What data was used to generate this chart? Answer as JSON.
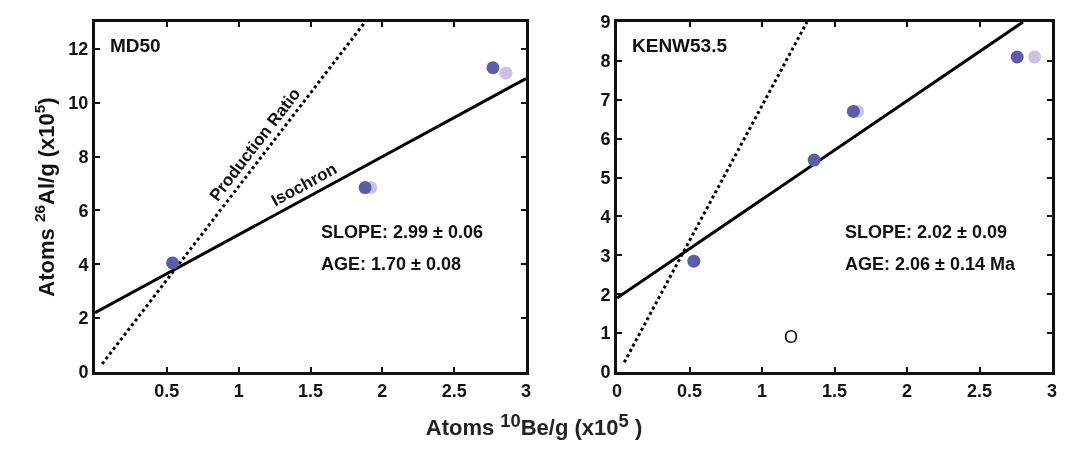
{
  "chart_data": [
    {
      "type": "scatter",
      "title": "MD50",
      "xlabel": "Atoms $^{10}$Be/g (x10$^{5}$ )",
      "ylabel": "Atoms $^{26}$Al/g (x10$^{5}$)",
      "xlim": [
        0,
        3
      ],
      "ylim": [
        0,
        13
      ],
      "xticks": [
        0.5,
        1,
        1.5,
        2,
        2.5,
        3
      ],
      "yticks": [
        0,
        2,
        4,
        6,
        8,
        10,
        12
      ],
      "grid": false,
      "series": [
        {
          "color": "#5c5ca8",
          "marker": "circle",
          "x": [
            0.54,
            1.88,
            2.77
          ],
          "values": [
            4.05,
            6.85,
            11.3
          ]
        },
        {
          "color": "#cbc3e3",
          "marker": "circle",
          "x": [
            1.92,
            2.86
          ],
          "values": [
            6.85,
            11.1
          ]
        },
        {
          "type": "line",
          "name": "Isochron",
          "color": "#000000",
          "marker": "none",
          "line_style": "solid",
          "x": [
            0,
            3
          ],
          "values": [
            2.2,
            10.9
          ]
        },
        {
          "type": "line",
          "name": "Production Ratio",
          "color": "#000000",
          "marker": "none",
          "line_style": "dotted",
          "x": [
            0.05,
            1.88
          ],
          "values": [
            0.3,
            13
          ]
        }
      ],
      "annotations": [
        "SLOPE: 2.99 ± 0.06",
        "AGE: 1.70 ± 0.08"
      ]
    },
    {
      "type": "scatter",
      "title": "KENW53.5",
      "xlim": [
        0,
        3
      ],
      "ylim": [
        0,
        9
      ],
      "xticks": [
        0,
        0.5,
        1,
        1.5,
        2,
        2.5,
        3
      ],
      "yticks": [
        0,
        1,
        2,
        3,
        4,
        5,
        6,
        7,
        8,
        9
      ],
      "grid": false,
      "series": [
        {
          "color": "#5c5ca8",
          "marker": "circle",
          "x": [
            0.53,
            1.36,
            1.63,
            2.76
          ],
          "values": [
            2.85,
            5.45,
            6.7,
            8.1
          ]
        },
        {
          "color": "#cbc3e3",
          "marker": "circle",
          "x": [
            1.66,
            2.88
          ],
          "values": [
            6.7,
            8.1
          ]
        },
        {
          "type": "line",
          "color": "#000000",
          "marker": "none",
          "line_style": "solid",
          "x": [
            0,
            2.8
          ],
          "values": [
            1.9,
            9
          ]
        },
        {
          "type": "line",
          "color": "#000000",
          "marker": "none",
          "line_style": "dotted",
          "x": [
            0.05,
            1.31
          ],
          "values": [
            0.25,
            9
          ]
        }
      ],
      "annotations": [
        "SLOPE: 2.02 ± 0.09",
        "AGE: 2.06 ± 0.14 Ma",
        "O"
      ]
    }
  ]
}
